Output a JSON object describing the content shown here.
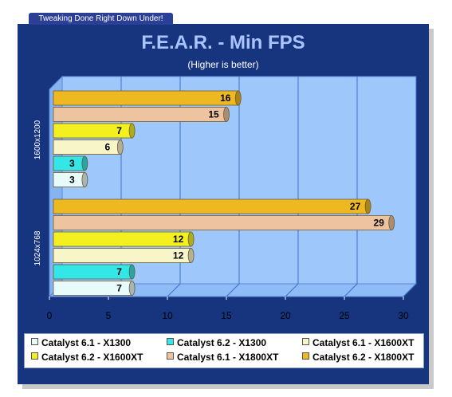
{
  "header": {
    "tab_text": "Tweaking Done Right Down Under!"
  },
  "chart_data": {
    "type": "bar",
    "orientation": "horizontal",
    "title": "F.E.A.R. - Min FPS",
    "subtitle": "(Higher is better)",
    "categories": [
      "1600x1200",
      "1024x768"
    ],
    "series": [
      {
        "name": "Catalyst 6.1 - X1300",
        "values": [
          3,
          7
        ],
        "color": "#e8fbfb"
      },
      {
        "name": "Catalyst 6.2 - X1300",
        "values": [
          3,
          7
        ],
        "color": "#35e6e6"
      },
      {
        "name": "Catalyst 6.1 - X1600XT",
        "values": [
          6,
          12
        ],
        "color": "#f8f6c8"
      },
      {
        "name": "Catalyst 6.2 - X1600XT",
        "values": [
          7,
          12
        ],
        "color": "#f4f020"
      },
      {
        "name": "Catalyst 6.1 - X1800XT",
        "values": [
          15,
          29
        ],
        "color": "#eec4a0"
      },
      {
        "name": "Catalyst 6.2 - X1800XT",
        "values": [
          16,
          27
        ],
        "color": "#eeb820"
      }
    ],
    "xlim": [
      0,
      30
    ],
    "xticks": [
      0,
      5,
      10,
      15,
      20,
      25,
      30
    ],
    "grid": true,
    "legend_position": "bottom"
  }
}
